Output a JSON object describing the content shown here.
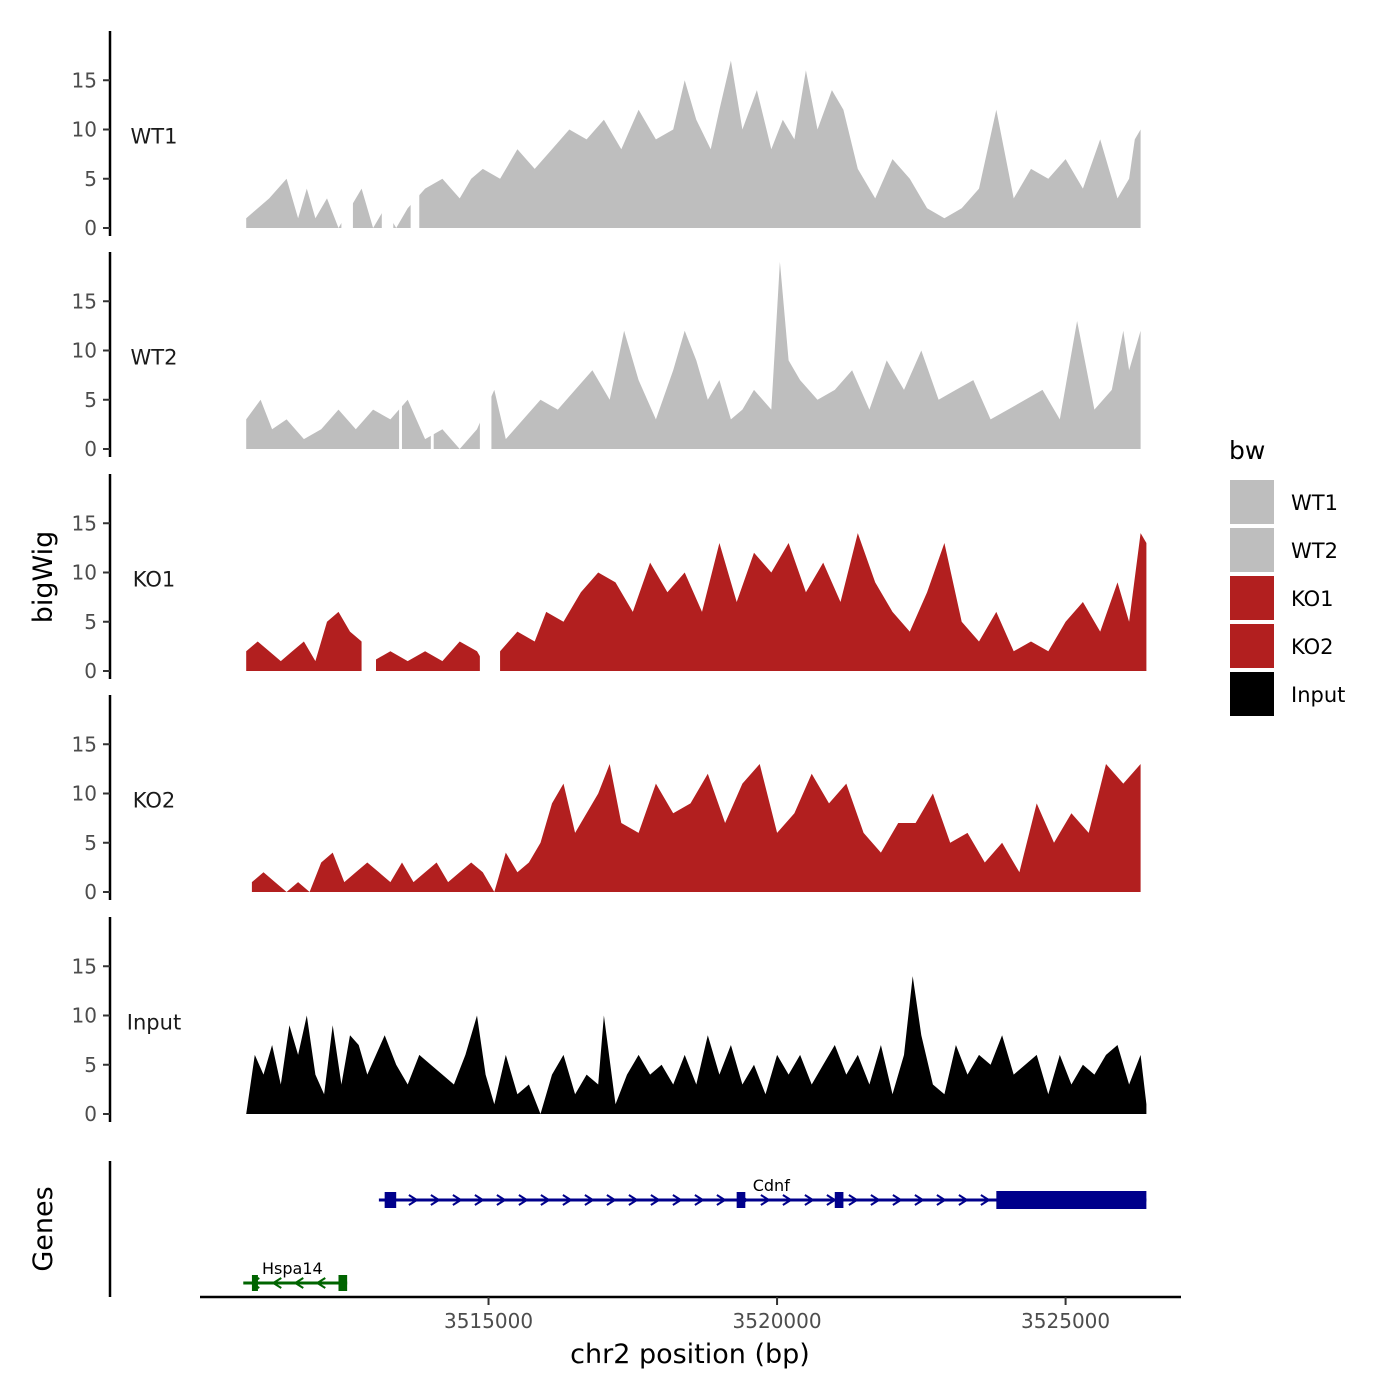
{
  "chart_data": {
    "type": "area",
    "xlabel": "chr2 position (bp)",
    "ylabel": "bigWig",
    "genes_label": "Genes",
    "xlim": [
      3510000,
      3527000
    ],
    "x_ticks": [
      3515000,
      3520000,
      3525000
    ],
    "x_tick_labels": [
      "3515000",
      "3520000",
      "3525000"
    ],
    "ylim": [
      0,
      20
    ],
    "y_ticks": [
      0,
      5,
      10,
      15
    ],
    "y_tick_labels": [
      "0",
      "5",
      "10",
      "15"
    ],
    "legend": {
      "title": "bw",
      "position": "right",
      "entries": [
        {
          "name": "WT1",
          "color": "#bebebe"
        },
        {
          "name": "WT2",
          "color": "#bebebe"
        },
        {
          "name": "KO1",
          "color": "#b21f1f"
        },
        {
          "name": "KO2",
          "color": "#b21f1f"
        },
        {
          "name": "Input",
          "color": "#000000"
        }
      ]
    },
    "series": [
      {
        "name": "WT1",
        "color": "#bebebe",
        "x": [
          3510800,
          3511200,
          3511500,
          3511700,
          3511850,
          3512000,
          3512200,
          3512400,
          3512600,
          3512800,
          3513000,
          3513200,
          3513400,
          3513600,
          3513900,
          3514200,
          3514500,
          3514700,
          3514900,
          3515200,
          3515500,
          3515800,
          3516100,
          3516400,
          3516700,
          3517000,
          3517300,
          3517600,
          3517900,
          3518200,
          3518400,
          3518600,
          3518850,
          3519000,
          3519200,
          3519400,
          3519650,
          3519900,
          3520100,
          3520300,
          3520500,
          3520700,
          3520950,
          3521150,
          3521400,
          3521700,
          3522000,
          3522300,
          3522600,
          3522900,
          3523200,
          3523500,
          3523800,
          3524100,
          3524400,
          3524700,
          3525000,
          3525300,
          3525600,
          3525900,
          3526100,
          3526200,
          3526300
        ],
        "values": [
          1,
          3,
          5,
          1,
          4,
          1,
          3,
          0,
          2,
          4,
          0,
          2,
          0,
          2,
          4,
          5,
          3,
          5,
          6,
          5,
          8,
          6,
          8,
          10,
          9,
          11,
          8,
          12,
          9,
          10,
          15,
          11,
          8,
          12,
          17,
          10,
          14,
          8,
          11,
          9,
          16,
          10,
          14,
          12,
          6,
          3,
          7,
          5,
          2,
          1,
          2,
          4,
          12,
          3,
          6,
          5,
          7,
          4,
          9,
          3,
          5,
          9,
          10
        ],
        "gaps": [
          [
            3512450,
            3512650
          ],
          [
            3513150,
            3513350
          ],
          [
            3513650,
            3513800
          ]
        ]
      },
      {
        "name": "WT2",
        "color": "#bebebe",
        "x": [
          3510800,
          3511050,
          3511250,
          3511500,
          3511800,
          3512100,
          3512400,
          3512700,
          3513000,
          3513300,
          3513600,
          3513900,
          3514200,
          3514500,
          3514800,
          3515100,
          3515300,
          3515600,
          3515900,
          3516200,
          3516500,
          3516800,
          3517100,
          3517350,
          3517600,
          3517900,
          3518200,
          3518400,
          3518600,
          3518800,
          3519000,
          3519200,
          3519400,
          3519600,
          3519900,
          3520050,
          3520200,
          3520400,
          3520700,
          3521000,
          3521300,
          3521600,
          3521900,
          3522200,
          3522500,
          3522800,
          3523100,
          3523400,
          3523700,
          3524000,
          3524300,
          3524600,
          3524900,
          3525200,
          3525500,
          3525800,
          3526000,
          3526100,
          3526300
        ],
        "values": [
          3,
          5,
          2,
          3,
          1,
          2,
          4,
          2,
          4,
          3,
          5,
          1,
          2,
          0,
          2,
          6,
          1,
          3,
          5,
          4,
          6,
          8,
          5,
          12,
          7,
          3,
          8,
          12,
          9,
          5,
          7,
          3,
          4,
          6,
          4,
          19,
          9,
          7,
          5,
          6,
          8,
          4,
          9,
          6,
          10,
          5,
          6,
          7,
          3,
          4,
          5,
          6,
          3,
          13,
          4,
          6,
          12,
          8,
          12
        ],
        "gaps": [
          [
            3513450,
            3513500
          ],
          [
            3514000,
            3514050
          ],
          [
            3514850,
            3515050
          ]
        ]
      },
      {
        "name": "KO1",
        "color": "#b21f1f",
        "x": [
          3510800,
          3511000,
          3511200,
          3511400,
          3511600,
          3511800,
          3512000,
          3512200,
          3512400,
          3512600,
          3512800,
          3513000,
          3513300,
          3513600,
          3513900,
          3514200,
          3514500,
          3514800,
          3515000,
          3515200,
          3515500,
          3515800,
          3516000,
          3516300,
          3516600,
          3516900,
          3517200,
          3517500,
          3517800,
          3518100,
          3518400,
          3518700,
          3519000,
          3519300,
          3519600,
          3519900,
          3520200,
          3520500,
          3520800,
          3521100,
          3521400,
          3521700,
          3522000,
          3522300,
          3522600,
          3522900,
          3523200,
          3523500,
          3523800,
          3524100,
          3524400,
          3524700,
          3525000,
          3525300,
          3525600,
          3525900,
          3526100,
          3526300,
          3526400
        ],
        "values": [
          2,
          3,
          2,
          1,
          2,
          3,
          1,
          5,
          6,
          4,
          3,
          1,
          2,
          1,
          2,
          1,
          3,
          2,
          0,
          2,
          4,
          3,
          6,
          5,
          8,
          10,
          9,
          6,
          11,
          8,
          10,
          6,
          13,
          7,
          12,
          10,
          13,
          8,
          11,
          7,
          14,
          9,
          6,
          4,
          8,
          13,
          5,
          3,
          6,
          2,
          3,
          2,
          5,
          7,
          4,
          9,
          5,
          14,
          13
        ],
        "gaps": [
          [
            3512800,
            3513050
          ],
          [
            3514850,
            3515200
          ]
        ]
      },
      {
        "name": "KO2",
        "color": "#b21f1f",
        "x": [
          3510900,
          3511100,
          3511300,
          3511500,
          3511700,
          3511900,
          3512100,
          3512300,
          3512500,
          3512700,
          3512900,
          3513100,
          3513300,
          3513500,
          3513700,
          3513900,
          3514100,
          3514300,
          3514500,
          3514700,
          3514900,
          3515100,
          3515300,
          3515500,
          3515700,
          3515900,
          3516100,
          3516300,
          3516500,
          3516700,
          3516900,
          3517100,
          3517300,
          3517600,
          3517900,
          3518200,
          3518500,
          3518800,
          3519100,
          3519400,
          3519700,
          3520000,
          3520300,
          3520600,
          3520900,
          3521200,
          3521500,
          3521800,
          3522100,
          3522400,
          3522700,
          3523000,
          3523300,
          3523600,
          3523900,
          3524200,
          3524500,
          3524800,
          3525100,
          3525400,
          3525700,
          3526000,
          3526300
        ],
        "values": [
          1,
          2,
          1,
          0,
          1,
          0,
          3,
          4,
          1,
          2,
          3,
          2,
          1,
          3,
          1,
          2,
          3,
          1,
          2,
          3,
          2,
          0,
          4,
          2,
          3,
          5,
          9,
          11,
          6,
          8,
          10,
          13,
          7,
          6,
          11,
          8,
          9,
          12,
          7,
          11,
          13,
          6,
          8,
          12,
          9,
          11,
          6,
          4,
          7,
          7,
          10,
          5,
          6,
          3,
          5,
          2,
          9,
          5,
          8,
          6,
          13,
          11,
          13
        ],
        "gaps": []
      },
      {
        "name": "Input",
        "color": "#000000",
        "x": [
          3510800,
          3510950,
          3511100,
          3511250,
          3511400,
          3511550,
          3511700,
          3511850,
          3512000,
          3512150,
          3512300,
          3512450,
          3512600,
          3512750,
          3512900,
          3513050,
          3513200,
          3513400,
          3513600,
          3513800,
          3514000,
          3514200,
          3514400,
          3514600,
          3514800,
          3514950,
          3515100,
          3515300,
          3515500,
          3515700,
          3515900,
          3516100,
          3516300,
          3516500,
          3516700,
          3516900,
          3517000,
          3517200,
          3517400,
          3517600,
          3517800,
          3518000,
          3518200,
          3518400,
          3518600,
          3518800,
          3519000,
          3519200,
          3519400,
          3519600,
          3519800,
          3520000,
          3520200,
          3520400,
          3520600,
          3520800,
          3521000,
          3521200,
          3521400,
          3521600,
          3521800,
          3522000,
          3522200,
          3522350,
          3522500,
          3522700,
          3522900,
          3523100,
          3523300,
          3523500,
          3523700,
          3523900,
          3524100,
          3524300,
          3524500,
          3524700,
          3524900,
          3525100,
          3525300,
          3525500,
          3525700,
          3525900,
          3526100,
          3526300,
          3526400
        ],
        "values": [
          0,
          6,
          4,
          7,
          3,
          9,
          6,
          10,
          4,
          2,
          9,
          3,
          8,
          7,
          4,
          6,
          8,
          5,
          3,
          6,
          5,
          4,
          3,
          6,
          10,
          4,
          1,
          6,
          2,
          3,
          0,
          4,
          6,
          2,
          4,
          3,
          10,
          1,
          4,
          6,
          4,
          5,
          3,
          6,
          3,
          8,
          4,
          7,
          3,
          5,
          2,
          6,
          4,
          6,
          3,
          5,
          7,
          4,
          6,
          3,
          7,
          2,
          6,
          14,
          8,
          3,
          2,
          7,
          4,
          6,
          5,
          8,
          4,
          5,
          6,
          2,
          6,
          3,
          5,
          4,
          6,
          7,
          3,
          6,
          1
        ],
        "gaps": []
      }
    ],
    "genes": [
      {
        "name": "Cdnf",
        "strand": "+",
        "color": "#00008b",
        "start": 3513100,
        "end": 3526400,
        "exons": [
          [
            3513200,
            3513400
          ],
          [
            3519300,
            3519450
          ],
          [
            3521000,
            3521150
          ],
          [
            3523800,
            3526400
          ]
        ]
      },
      {
        "name": "Hspa14",
        "strand": "-",
        "color": "#006400",
        "start": 3510750,
        "end": 3512550,
        "exons": [
          [
            3510900,
            3511000
          ],
          [
            3512400,
            3512550
          ]
        ]
      }
    ]
  }
}
